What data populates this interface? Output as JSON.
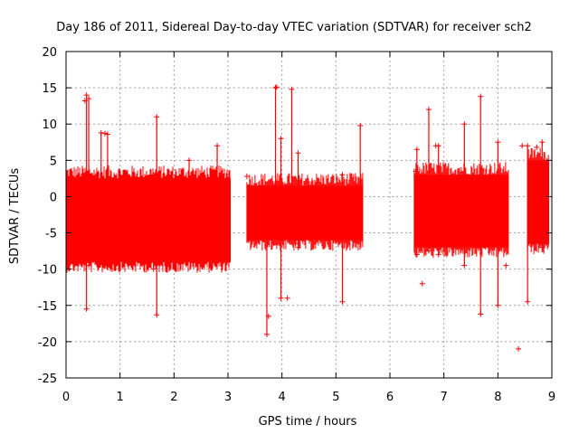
{
  "chart_data": {
    "type": "scatter",
    "title": "Day 186 of 2011, Sidereal Day-to-day VTEC variation (SDTVAR) for receiver sch2",
    "xlabel": "GPS time / hours",
    "ylabel": "SDTVAR / TECUs",
    "xlim": [
      0,
      9
    ],
    "ylim": [
      -25,
      20
    ],
    "xticks": [
      "0",
      "1",
      "2",
      "3",
      "4",
      "5",
      "6",
      "7",
      "8",
      "9"
    ],
    "yticks": [
      "-25",
      "-20",
      "-15",
      "-10",
      "-5",
      "0",
      "5",
      "10",
      "15",
      "20"
    ],
    "grid": true,
    "series_color": "#ff0000",
    "marker": "plus",
    "segments": [
      {
        "x_start": 0.0,
        "x_end": 3.05,
        "band_low": -9.0,
        "band_high": 2.5
      },
      {
        "x_start": 3.35,
        "x_end": 5.5,
        "band_low": -6.0,
        "band_high": 1.5
      },
      {
        "x_start": 6.45,
        "x_end": 8.2,
        "band_low": -7.0,
        "band_high": 3.0
      },
      {
        "x_start": 8.55,
        "x_end": 8.95,
        "band_low": -6.5,
        "band_high": 5.0
      }
    ],
    "spikes": [
      {
        "x": 0.38,
        "y_low": -15.5,
        "y_high": 14.0
      },
      {
        "x": 0.42,
        "y_low": -9.5,
        "y_high": 13.5
      },
      {
        "x": 0.65,
        "y_low": -9.0,
        "y_high": 8.8
      },
      {
        "x": 0.77,
        "y_low": -8.5,
        "y_high": 8.6
      },
      {
        "x": 1.68,
        "y_low": -16.3,
        "y_high": 11.0
      },
      {
        "x": 1.62,
        "y_low": -10.0,
        "y_high": 3.0
      },
      {
        "x": 2.28,
        "y_low": -8.0,
        "y_high": 5.0
      },
      {
        "x": 2.8,
        "y_low": -8.5,
        "y_high": 7.0
      },
      {
        "x": 3.72,
        "y_low": -19.0,
        "y_high": -2.0
      },
      {
        "x": 3.88,
        "y_low": -5.0,
        "y_high": 15.0
      },
      {
        "x": 3.98,
        "y_low": -14.0,
        "y_high": 8.0
      },
      {
        "x": 4.18,
        "y_low": -5.0,
        "y_high": 14.8
      },
      {
        "x": 4.3,
        "y_low": -7.0,
        "y_high": 6.0
      },
      {
        "x": 5.12,
        "y_low": -14.5,
        "y_high": 3.0
      },
      {
        "x": 5.45,
        "y_low": -4.0,
        "y_high": 9.8
      },
      {
        "x": 6.5,
        "y_low": -8.0,
        "y_high": 6.5
      },
      {
        "x": 6.72,
        "y_low": -7.5,
        "y_high": 12.0
      },
      {
        "x": 6.9,
        "y_low": -8.0,
        "y_high": 7.0
      },
      {
        "x": 7.38,
        "y_low": -9.5,
        "y_high": 10.0
      },
      {
        "x": 7.68,
        "y_low": -16.2,
        "y_high": 13.8
      },
      {
        "x": 8.0,
        "y_low": -15.0,
        "y_high": 7.5
      },
      {
        "x": 8.55,
        "y_low": -14.5,
        "y_high": 7.0
      },
      {
        "x": 8.82,
        "y_low": -7.0,
        "y_high": 7.5
      }
    ],
    "outliers": [
      {
        "x": 0.35,
        "y": 13.2
      },
      {
        "x": 0.72,
        "y": 8.7
      },
      {
        "x": 2.5,
        "y": -8.0
      },
      {
        "x": 3.35,
        "y": 2.8
      },
      {
        "x": 3.75,
        "y": -16.5
      },
      {
        "x": 3.9,
        "y": 15.1
      },
      {
        "x": 4.1,
        "y": -14.0
      },
      {
        "x": 4.25,
        "y": -6.5
      },
      {
        "x": 6.6,
        "y": -12.0
      },
      {
        "x": 6.48,
        "y": 3.5
      },
      {
        "x": 6.85,
        "y": 7.0
      },
      {
        "x": 8.38,
        "y": -21.0
      },
      {
        "x": 8.45,
        "y": 7.0
      },
      {
        "x": 8.72,
        "y": 6.8
      },
      {
        "x": 8.15,
        "y": -9.5
      }
    ]
  }
}
